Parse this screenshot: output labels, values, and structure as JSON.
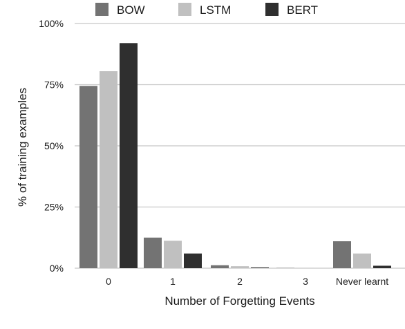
{
  "chart_data": {
    "type": "bar",
    "title": "",
    "xlabel": "Number of Forgetting Events",
    "ylabel": "% of training examples",
    "categories": [
      "0",
      "1",
      "2",
      "3",
      "Never learnt"
    ],
    "series": [
      {
        "name": "BOW",
        "values": [
          74.5,
          12.5,
          1.2,
          0.1,
          11.0
        ]
      },
      {
        "name": "LSTM",
        "values": [
          80.5,
          11.2,
          0.8,
          0.1,
          6.0
        ]
      },
      {
        "name": "BERT",
        "values": [
          92.0,
          6.0,
          0.3,
          0.0,
          1.0
        ]
      }
    ],
    "ylim": [
      0,
      100
    ],
    "yticks": [
      "0%",
      "25%",
      "50%",
      "75%",
      "100%"
    ],
    "ytick_values": [
      0,
      25,
      50,
      75,
      100
    ],
    "grid": true,
    "legend_position": "top"
  },
  "colors": {
    "BOW": "#737373",
    "LSTM": "#c0c0c0",
    "BERT": "#2f2f2f",
    "grid": "#c8c8c8"
  }
}
